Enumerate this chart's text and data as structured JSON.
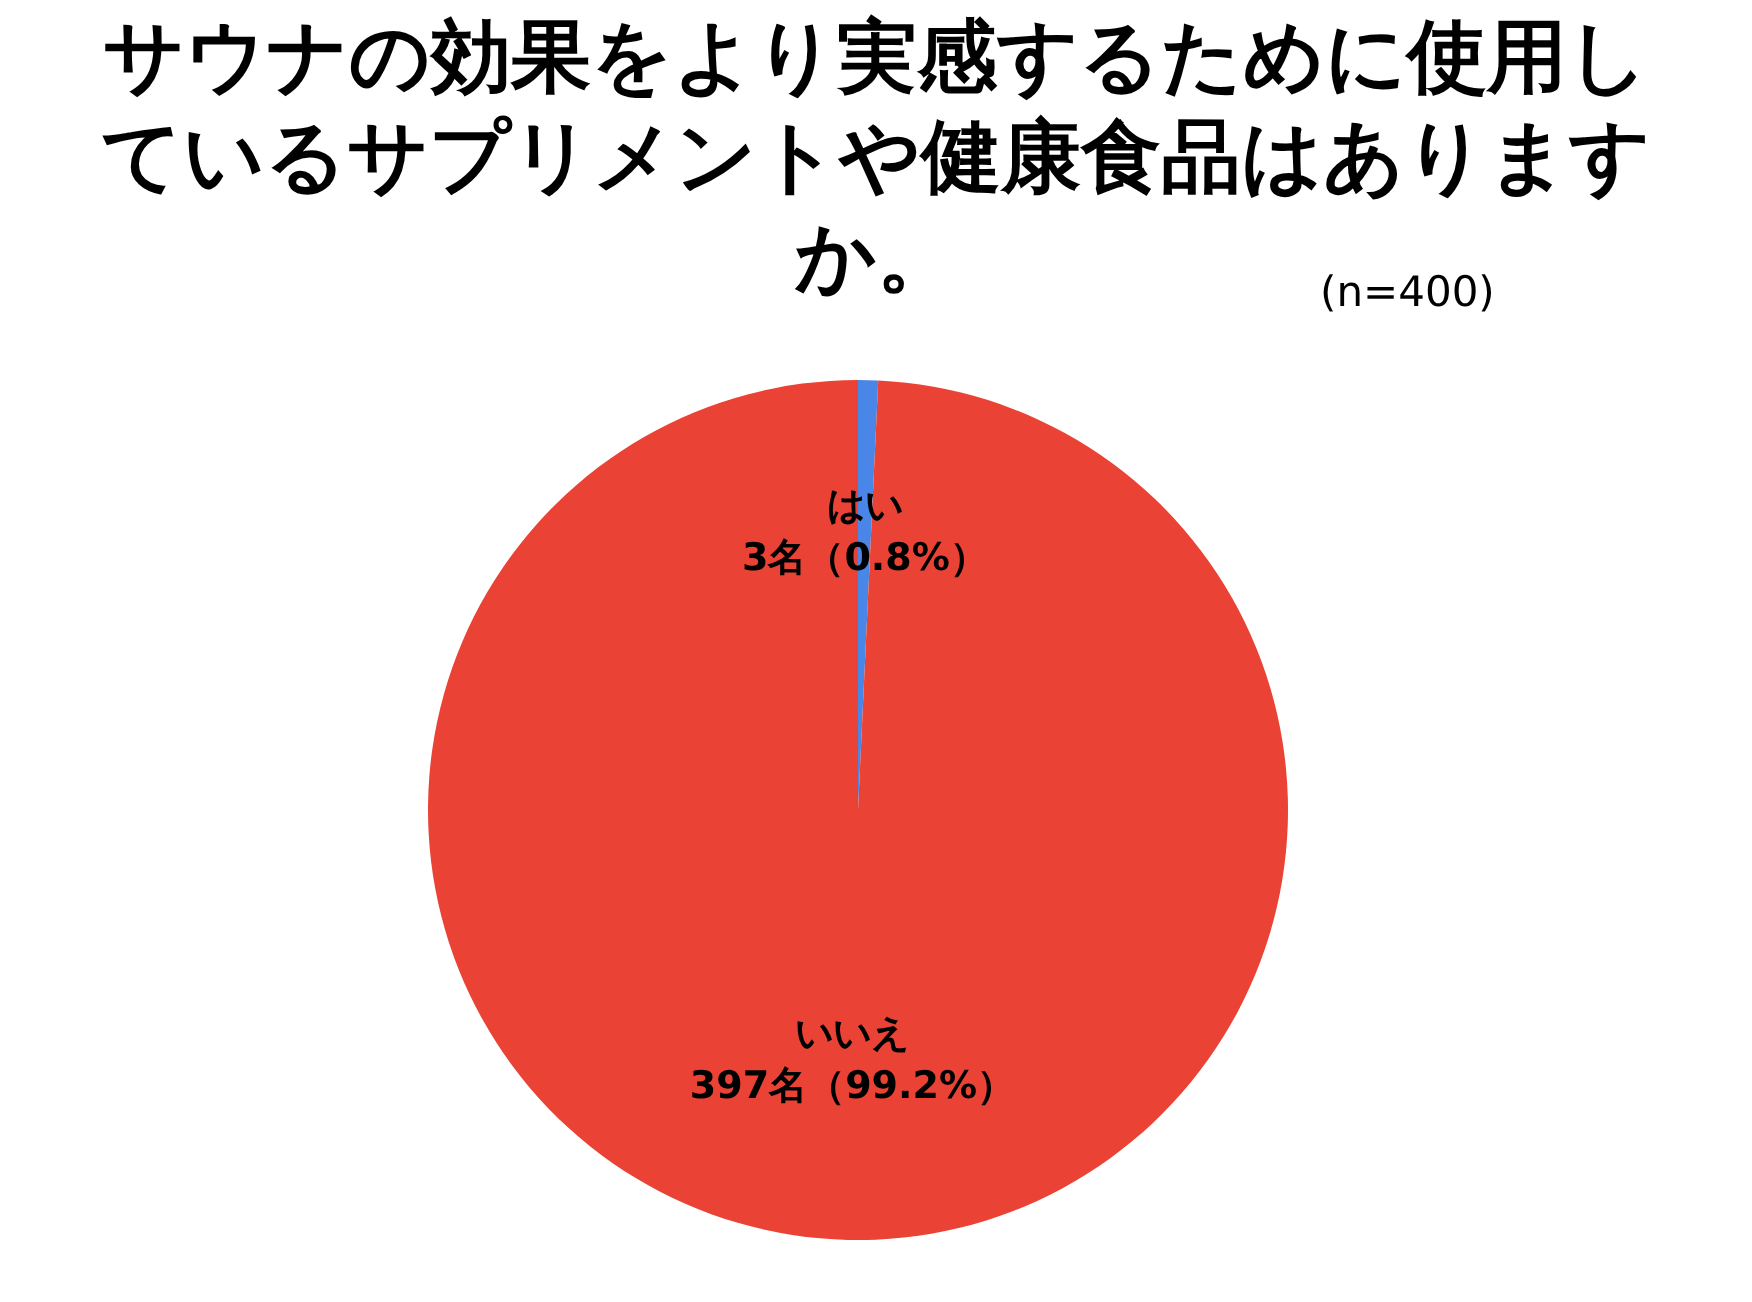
{
  "chart_data": {
    "type": "pie",
    "title": "サウナの効果をより実感するために使用しているサプリメントや健康食品はありますか。",
    "subtitle": "(n=400)",
    "categories": [
      "はい",
      "いいえ"
    ],
    "values": [
      3,
      397
    ],
    "value_labels": [
      "3名（0.8%）",
      "397名（99.2%）"
    ],
    "colors": [
      "#4a86e8",
      "#ea4335"
    ]
  }
}
